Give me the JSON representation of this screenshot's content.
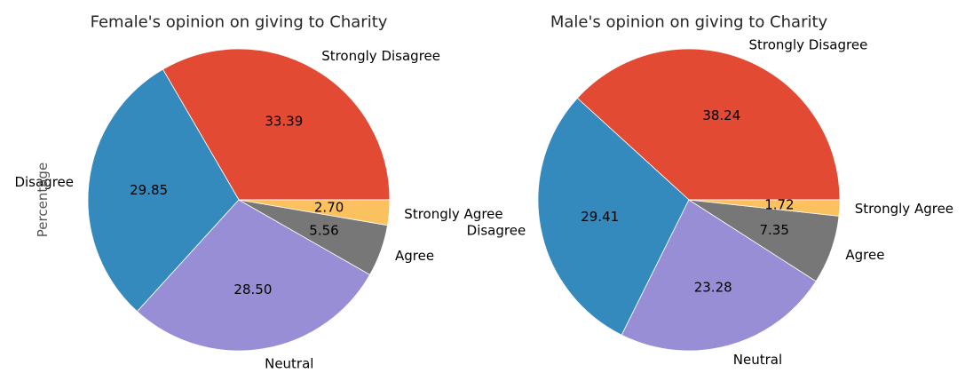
{
  "chart_data": [
    {
      "type": "pie",
      "title": "Female's opinion on giving to Charity",
      "ylabel": "Percentage",
      "slices": [
        {
          "label": "Strongly Disagree",
          "value": 33.39,
          "value_label": "33.39",
          "color": "#E24A33"
        },
        {
          "label": "Disagree",
          "value": 29.85,
          "value_label": "29.85",
          "color": "#348ABD"
        },
        {
          "label": "Neutral",
          "value": 28.5,
          "value_label": "28.50",
          "color": "#988ED5"
        },
        {
          "label": "Agree",
          "value": 5.56,
          "value_label": "5.56",
          "color": "#777777"
        },
        {
          "label": "Strongly Agree",
          "value": 2.7,
          "value_label": "2.70",
          "color": "#FBC15E"
        }
      ]
    },
    {
      "type": "pie",
      "title": "Male's opinion on giving to Charity",
      "ylabel": "",
      "slices": [
        {
          "label": "Strongly Disagree",
          "value": 38.24,
          "value_label": "38.24",
          "color": "#E24A33"
        },
        {
          "label": "Disagree",
          "value": 29.41,
          "value_label": "29.41",
          "color": "#348ABD"
        },
        {
          "label": "Neutral",
          "value": 23.28,
          "value_label": "23.28",
          "color": "#988ED5"
        },
        {
          "label": "Agree",
          "value": 7.35,
          "value_label": "7.35",
          "color": "#777777"
        },
        {
          "label": "Strongly Agree",
          "value": 1.72,
          "value_label": "1.72",
          "color": "#FBC15E"
        }
      ]
    }
  ]
}
